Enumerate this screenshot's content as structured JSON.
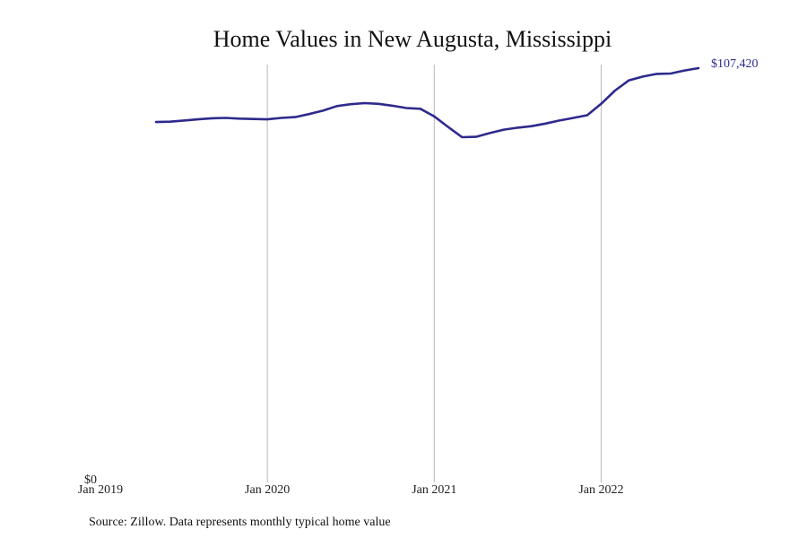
{
  "chart_data": {
    "type": "line",
    "title": "Home Values in New Augusta, Mississippi",
    "xlabel": "",
    "ylabel": "",
    "x_tick_labels": [
      "Jan 2019",
      "Jan 2020",
      "Jan 2021",
      "Jan 2022"
    ],
    "y_tick_labels": [
      "$0"
    ],
    "ylim": [
      0,
      107420
    ],
    "grid": "vertical lines at each January",
    "series": [
      {
        "color": "#2e2a8c",
        "x": [
          "2019-05",
          "2019-06",
          "2019-07",
          "2019-08",
          "2019-09",
          "2019-10",
          "2019-11",
          "2019-12",
          "2020-01",
          "2020-02",
          "2020-03",
          "2020-04",
          "2020-05",
          "2020-06",
          "2020-07",
          "2020-08",
          "2020-09",
          "2020-10",
          "2020-11",
          "2020-12",
          "2021-01",
          "2021-02",
          "2021-03",
          "2021-04",
          "2021-05",
          "2021-06",
          "2021-07",
          "2021-08",
          "2021-09",
          "2021-10",
          "2021-11",
          "2021-12",
          "2022-01",
          "2022-02",
          "2022-03",
          "2022-04",
          "2022-05",
          "2022-06",
          "2022-07",
          "2022-08"
        ],
        "values": [
          93200,
          93300,
          93600,
          93900,
          94200,
          94300,
          94100,
          94000,
          93900,
          94300,
          94500,
          95300,
          96200,
          97400,
          97900,
          98200,
          98000,
          97500,
          96900,
          96700,
          94700,
          91900,
          89200,
          89300,
          90300,
          91200,
          91700,
          92100,
          92800,
          93600,
          94300,
          95000,
          98000,
          101500,
          104200,
          105200,
          105900,
          106000,
          106800,
          107420
        ]
      }
    ],
    "end_label": "$107,420",
    "source": "Source: Zillow. Data represents monthly typical home value"
  }
}
